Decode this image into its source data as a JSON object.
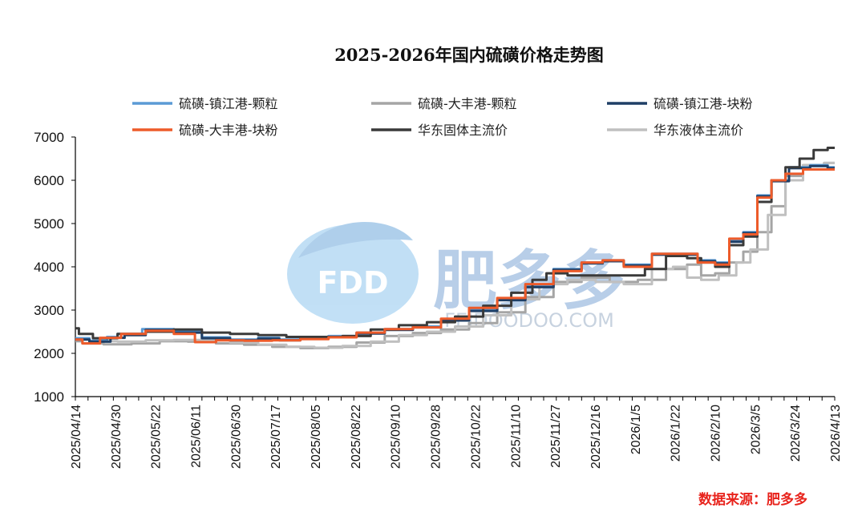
{
  "chart_data": {
    "type": "line",
    "title": "2025-2026年国内硫磺价格走势图",
    "ylim": [
      1000,
      7000
    ],
    "yticks": [
      1000,
      2000,
      3000,
      4000,
      5000,
      6000,
      7000
    ],
    "x_range": [
      "2025/04/14",
      "2026/04/13"
    ],
    "xticks": [
      "2025/04/14",
      "2025/04/30",
      "2025/05/22",
      "2025/06/11",
      "2025/06/30",
      "2025/07/17",
      "2025/08/05",
      "2025/08/22",
      "2025/09/10",
      "2025/09/28",
      "2025/10/22",
      "2025/11/10",
      "2025/11/27",
      "2025/12/16",
      "2026/1/5",
      "2026/1/22",
      "2026/2/10",
      "2026/3/5",
      "2026/3/24",
      "2026/4/13"
    ],
    "legend_position": "top",
    "series": [
      {
        "name": "硫磺-镇江港-颗粒",
        "color": "#5b9bd5",
        "width": 3,
        "points": [
          [
            0,
            2350
          ],
          [
            0.04,
            2290
          ],
          [
            0.05,
            2380
          ],
          [
            0.07,
            2450
          ],
          [
            0.12,
            2560
          ],
          [
            0.16,
            2500
          ],
          [
            0.2,
            2370
          ],
          [
            0.24,
            2320
          ],
          [
            0.28,
            2360
          ],
          [
            0.3,
            2320
          ],
          [
            0.34,
            2370
          ],
          [
            0.38,
            2400
          ],
          [
            0.42,
            2480
          ],
          [
            0.46,
            2560
          ],
          [
            0.5,
            2620
          ],
          [
            0.54,
            2780
          ],
          [
            0.58,
            3000
          ],
          [
            0.62,
            3250
          ],
          [
            0.66,
            3550
          ],
          [
            0.7,
            3950
          ],
          [
            0.74,
            4100
          ],
          [
            0.76,
            4150
          ],
          [
            0.8,
            4050
          ],
          [
            0.84,
            4300
          ],
          [
            0.87,
            4300
          ],
          [
            0.9,
            4150
          ],
          [
            0.92,
            4100
          ],
          [
            0.94,
            4600
          ],
          [
            0.96,
            4800
          ],
          [
            0.98,
            5650
          ],
          [
            1.0,
            6000
          ],
          [
            1.03,
            6300
          ],
          [
            1.06,
            6350
          ],
          [
            1.08,
            6300
          ]
        ]
      },
      {
        "name": "硫磺-大丰港-颗粒",
        "color": "#a5a5a5",
        "width": 3,
        "points": [
          [
            0,
            2280
          ],
          [
            0.02,
            2230
          ],
          [
            0.06,
            2210
          ],
          [
            0.1,
            2230
          ],
          [
            0.14,
            2280
          ],
          [
            0.18,
            2270
          ],
          [
            0.22,
            2230
          ],
          [
            0.26,
            2200
          ],
          [
            0.3,
            2150
          ],
          [
            0.34,
            2120
          ],
          [
            0.38,
            2150
          ],
          [
            0.42,
            2250
          ],
          [
            0.46,
            2400
          ],
          [
            0.5,
            2470
          ],
          [
            0.54,
            2550
          ],
          [
            0.58,
            2700
          ],
          [
            0.62,
            2950
          ],
          [
            0.66,
            3300
          ],
          [
            0.7,
            3650
          ],
          [
            0.74,
            3750
          ],
          [
            0.78,
            3650
          ],
          [
            0.82,
            3700
          ],
          [
            0.86,
            3950
          ],
          [
            0.88,
            4050
          ],
          [
            0.9,
            3800
          ],
          [
            0.92,
            3850
          ],
          [
            0.94,
            4100
          ],
          [
            0.96,
            4350
          ],
          [
            0.98,
            4800
          ],
          [
            1.0,
            5400
          ],
          [
            1.02,
            6100
          ],
          [
            1.05,
            6350
          ],
          [
            1.08,
            6400
          ]
        ]
      },
      {
        "name": "硫磺-镇江港-块粉",
        "color": "#1f3f66",
        "width": 3,
        "points": [
          [
            0,
            2320
          ],
          [
            0.04,
            2270
          ],
          [
            0.06,
            2360
          ],
          [
            0.08,
            2420
          ],
          [
            0.12,
            2540
          ],
          [
            0.16,
            2480
          ],
          [
            0.2,
            2350
          ],
          [
            0.24,
            2300
          ],
          [
            0.28,
            2340
          ],
          [
            0.3,
            2300
          ],
          [
            0.34,
            2350
          ],
          [
            0.38,
            2380
          ],
          [
            0.42,
            2460
          ],
          [
            0.46,
            2540
          ],
          [
            0.5,
            2600
          ],
          [
            0.54,
            2760
          ],
          [
            0.58,
            2980
          ],
          [
            0.62,
            3230
          ],
          [
            0.66,
            3530
          ],
          [
            0.7,
            3930
          ],
          [
            0.74,
            4080
          ],
          [
            0.76,
            4130
          ],
          [
            0.8,
            4030
          ],
          [
            0.84,
            4280
          ],
          [
            0.87,
            4280
          ],
          [
            0.9,
            4130
          ],
          [
            0.92,
            4080
          ],
          [
            0.94,
            4580
          ],
          [
            0.96,
            4780
          ],
          [
            0.98,
            5630
          ],
          [
            1.0,
            5980
          ],
          [
            1.03,
            6280
          ],
          [
            1.06,
            6330
          ],
          [
            1.08,
            6280
          ]
        ]
      },
      {
        "name": "硫磺-大丰港-块粉",
        "color": "#ed5b2a",
        "width": 3,
        "points": [
          [
            0,
            2320
          ],
          [
            0.02,
            2230
          ],
          [
            0.05,
            2360
          ],
          [
            0.08,
            2450
          ],
          [
            0.12,
            2520
          ],
          [
            0.16,
            2450
          ],
          [
            0.18,
            2260
          ],
          [
            0.22,
            2300
          ],
          [
            0.26,
            2290
          ],
          [
            0.3,
            2300
          ],
          [
            0.34,
            2330
          ],
          [
            0.38,
            2370
          ],
          [
            0.42,
            2480
          ],
          [
            0.46,
            2560
          ],
          [
            0.5,
            2600
          ],
          [
            0.54,
            2800
          ],
          [
            0.58,
            3050
          ],
          [
            0.62,
            3280
          ],
          [
            0.66,
            3600
          ],
          [
            0.7,
            3900
          ],
          [
            0.74,
            4100
          ],
          [
            0.76,
            4150
          ],
          [
            0.8,
            4000
          ],
          [
            0.84,
            4300
          ],
          [
            0.87,
            4300
          ],
          [
            0.9,
            4100
          ],
          [
            0.92,
            4050
          ],
          [
            0.94,
            4650
          ],
          [
            0.96,
            4750
          ],
          [
            0.98,
            5600
          ],
          [
            1.0,
            6000
          ],
          [
            1.02,
            6150
          ],
          [
            1.05,
            6250
          ],
          [
            1.08,
            6250
          ]
        ]
      },
      {
        "name": "华东固体主流价",
        "color": "#3a3a3a",
        "width": 3,
        "points": [
          [
            0,
            2580
          ],
          [
            0.01,
            2450
          ],
          [
            0.04,
            2350
          ],
          [
            0.08,
            2450
          ],
          [
            0.12,
            2500
          ],
          [
            0.16,
            2550
          ],
          [
            0.2,
            2480
          ],
          [
            0.24,
            2450
          ],
          [
            0.28,
            2420
          ],
          [
            0.32,
            2380
          ],
          [
            0.36,
            2380
          ],
          [
            0.4,
            2400
          ],
          [
            0.44,
            2550
          ],
          [
            0.48,
            2650
          ],
          [
            0.52,
            2720
          ],
          [
            0.56,
            2850
          ],
          [
            0.6,
            3100
          ],
          [
            0.64,
            3400
          ],
          [
            0.66,
            3700
          ],
          [
            0.68,
            3850
          ],
          [
            0.72,
            3800
          ],
          [
            0.76,
            3800
          ],
          [
            0.8,
            3800
          ],
          [
            0.82,
            3950
          ],
          [
            0.86,
            4250
          ],
          [
            0.88,
            4200
          ],
          [
            0.9,
            4100
          ],
          [
            0.92,
            4000
          ],
          [
            0.94,
            4500
          ],
          [
            0.96,
            4700
          ],
          [
            0.98,
            5500
          ],
          [
            1.0,
            6000
          ],
          [
            1.02,
            6300
          ],
          [
            1.04,
            6500
          ],
          [
            1.06,
            6700
          ],
          [
            1.08,
            6750
          ]
        ]
      },
      {
        "name": "华东液体主流价",
        "color": "#c0c0c0",
        "width": 3,
        "points": [
          [
            0,
            2320
          ],
          [
            0.04,
            2280
          ],
          [
            0.08,
            2270
          ],
          [
            0.12,
            2300
          ],
          [
            0.16,
            2310
          ],
          [
            0.2,
            2300
          ],
          [
            0.24,
            2250
          ],
          [
            0.28,
            2200
          ],
          [
            0.32,
            2150
          ],
          [
            0.36,
            2130
          ],
          [
            0.4,
            2170
          ],
          [
            0.44,
            2270
          ],
          [
            0.48,
            2420
          ],
          [
            0.52,
            2500
          ],
          [
            0.56,
            2620
          ],
          [
            0.6,
            2880
          ],
          [
            0.64,
            3250
          ],
          [
            0.68,
            3600
          ],
          [
            0.72,
            3700
          ],
          [
            0.76,
            3650
          ],
          [
            0.8,
            3600
          ],
          [
            0.84,
            3950
          ],
          [
            0.86,
            4000
          ],
          [
            0.88,
            3750
          ],
          [
            0.9,
            3700
          ],
          [
            0.93,
            3800
          ],
          [
            0.95,
            4100
          ],
          [
            0.97,
            4400
          ],
          [
            1.0,
            5200
          ],
          [
            1.02,
            6000
          ],
          [
            1.05,
            6350
          ],
          [
            1.08,
            6400
          ]
        ]
      }
    ]
  },
  "watermark": {
    "brand": "FDD",
    "name": "肥多多",
    "url": "FEIDOODOO.COM"
  },
  "source": "数据来源：肥多多"
}
